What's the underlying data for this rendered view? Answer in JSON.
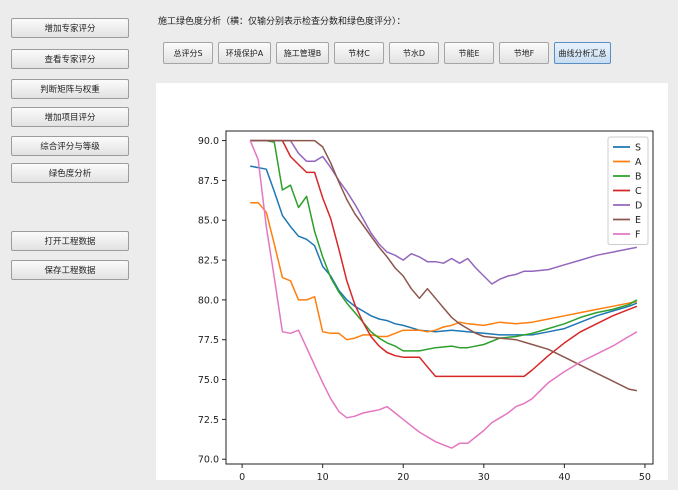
{
  "sidebar": {
    "buttons": [
      {
        "label": "增加专家评分"
      },
      {
        "label": "查看专家评分"
      },
      {
        "label": "判断矩阵与权重"
      },
      {
        "label": "增加项目评分"
      },
      {
        "label": "综合评分与等级"
      },
      {
        "label": "绿色度分析"
      },
      {
        "label": "打开工程数据"
      },
      {
        "label": "保存工程数据"
      }
    ]
  },
  "header": {
    "caption": "施工绿色度分析（横：仅输分别表示检查分数和绿色度评分）："
  },
  "tabs": [
    {
      "label": "总评分S"
    },
    {
      "label": "环境保护A"
    },
    {
      "label": "施工管理B"
    },
    {
      "label": "节材C"
    },
    {
      "label": "节水D"
    },
    {
      "label": "节能E"
    },
    {
      "label": "节地F"
    },
    {
      "label": "曲线分析汇总"
    }
  ],
  "active_tab": 7,
  "chart_data": {
    "type": "line",
    "xlim": [
      -2,
      51
    ],
    "ylim": [
      69.7,
      90.6
    ],
    "xticks": [
      0,
      10,
      20,
      30,
      40,
      50
    ],
    "yticks": [
      70.0,
      72.5,
      75.0,
      77.5,
      80.0,
      82.5,
      85.0,
      87.5,
      90.0
    ],
    "legend_position": "top-right",
    "grid": false,
    "series": [
      {
        "name": "S",
        "color": "#1f77b4",
        "points": [
          [
            1,
            88.4
          ],
          [
            2,
            88.3
          ],
          [
            3,
            88.2
          ],
          [
            4,
            86.8
          ],
          [
            5,
            85.3
          ],
          [
            6,
            84.6
          ],
          [
            7,
            84.0
          ],
          [
            8,
            83.8
          ],
          [
            9,
            83.4
          ],
          [
            10,
            82.1
          ],
          [
            11,
            81.5
          ],
          [
            12,
            80.6
          ],
          [
            13,
            80.0
          ],
          [
            14,
            79.6
          ],
          [
            15,
            79.3
          ],
          [
            16,
            79.0
          ],
          [
            17,
            78.8
          ],
          [
            18,
            78.7
          ],
          [
            19,
            78.5
          ],
          [
            20,
            78.4
          ],
          [
            22,
            78.1
          ],
          [
            24,
            78.0
          ],
          [
            26,
            78.1
          ],
          [
            28,
            78.0
          ],
          [
            30,
            77.9
          ],
          [
            32,
            77.8
          ],
          [
            34,
            77.8
          ],
          [
            36,
            77.8
          ],
          [
            38,
            78.0
          ],
          [
            40,
            78.2
          ],
          [
            42,
            78.6
          ],
          [
            44,
            79.0
          ],
          [
            46,
            79.3
          ],
          [
            48,
            79.6
          ],
          [
            49,
            79.8
          ]
        ]
      },
      {
        "name": "A",
        "color": "#ff7f0e",
        "points": [
          [
            1,
            86.1
          ],
          [
            2,
            86.1
          ],
          [
            3,
            85.5
          ],
          [
            4,
            83.5
          ],
          [
            5,
            81.4
          ],
          [
            6,
            81.2
          ],
          [
            7,
            80.0
          ],
          [
            8,
            80.0
          ],
          [
            9,
            80.2
          ],
          [
            10,
            78.0
          ],
          [
            11,
            77.9
          ],
          [
            12,
            77.9
          ],
          [
            13,
            77.5
          ],
          [
            14,
            77.6
          ],
          [
            15,
            77.8
          ],
          [
            16,
            77.8
          ],
          [
            17,
            77.7
          ],
          [
            18,
            77.7
          ],
          [
            19,
            77.9
          ],
          [
            20,
            78.1
          ],
          [
            22,
            78.1
          ],
          [
            23,
            78.0
          ],
          [
            24,
            78.1
          ],
          [
            25,
            78.3
          ],
          [
            26,
            78.4
          ],
          [
            27,
            78.6
          ],
          [
            28,
            78.5
          ],
          [
            30,
            78.4
          ],
          [
            32,
            78.6
          ],
          [
            34,
            78.5
          ],
          [
            36,
            78.6
          ],
          [
            38,
            78.8
          ],
          [
            40,
            79.0
          ],
          [
            42,
            79.2
          ],
          [
            44,
            79.4
          ],
          [
            46,
            79.6
          ],
          [
            48,
            79.8
          ],
          [
            49,
            79.9
          ]
        ]
      },
      {
        "name": "B",
        "color": "#2ca02c",
        "points": [
          [
            1,
            90.0
          ],
          [
            2,
            90.0
          ],
          [
            3,
            90.0
          ],
          [
            4,
            89.9
          ],
          [
            5,
            86.9
          ],
          [
            6,
            87.2
          ],
          [
            7,
            85.8
          ],
          [
            8,
            86.5
          ],
          [
            9,
            84.3
          ],
          [
            10,
            82.7
          ],
          [
            11,
            81.4
          ],
          [
            12,
            80.5
          ],
          [
            13,
            79.8
          ],
          [
            14,
            79.2
          ],
          [
            15,
            78.6
          ],
          [
            16,
            78.0
          ],
          [
            17,
            77.6
          ],
          [
            18,
            77.3
          ],
          [
            19,
            77.1
          ],
          [
            20,
            76.8
          ],
          [
            22,
            76.8
          ],
          [
            24,
            77.0
          ],
          [
            26,
            77.1
          ],
          [
            27,
            77.0
          ],
          [
            28,
            77.0
          ],
          [
            30,
            77.2
          ],
          [
            32,
            77.6
          ],
          [
            34,
            77.7
          ],
          [
            36,
            77.9
          ],
          [
            38,
            78.2
          ],
          [
            40,
            78.5
          ],
          [
            42,
            78.9
          ],
          [
            44,
            79.2
          ],
          [
            46,
            79.4
          ],
          [
            48,
            79.7
          ],
          [
            49,
            80.0
          ]
        ]
      },
      {
        "name": "C",
        "color": "#d62728",
        "points": [
          [
            1,
            90.0
          ],
          [
            2,
            90.0
          ],
          [
            3,
            90.0
          ],
          [
            4,
            90.0
          ],
          [
            5,
            90.0
          ],
          [
            6,
            89.0
          ],
          [
            7,
            88.5
          ],
          [
            8,
            88.0
          ],
          [
            9,
            88.0
          ],
          [
            10,
            86.4
          ],
          [
            11,
            85.1
          ],
          [
            12,
            83.2
          ],
          [
            13,
            81.2
          ],
          [
            14,
            79.7
          ],
          [
            15,
            78.6
          ],
          [
            16,
            77.7
          ],
          [
            17,
            77.1
          ],
          [
            18,
            76.7
          ],
          [
            19,
            76.5
          ],
          [
            20,
            76.4
          ],
          [
            22,
            76.4
          ],
          [
            23,
            75.8
          ],
          [
            24,
            75.2
          ],
          [
            26,
            75.2
          ],
          [
            28,
            75.2
          ],
          [
            30,
            75.2
          ],
          [
            32,
            75.2
          ],
          [
            34,
            75.2
          ],
          [
            35,
            75.2
          ],
          [
            36,
            75.6
          ],
          [
            38,
            76.5
          ],
          [
            40,
            77.3
          ],
          [
            42,
            78.0
          ],
          [
            44,
            78.5
          ],
          [
            46,
            79.0
          ],
          [
            48,
            79.4
          ],
          [
            49,
            79.6
          ]
        ]
      },
      {
        "name": "D",
        "color": "#9467bd",
        "points": [
          [
            1,
            90.0
          ],
          [
            2,
            90.0
          ],
          [
            3,
            90.0
          ],
          [
            4,
            90.0
          ],
          [
            5,
            90.0
          ],
          [
            6,
            90.0
          ],
          [
            7,
            89.2
          ],
          [
            8,
            88.7
          ],
          [
            9,
            88.7
          ],
          [
            10,
            89.0
          ],
          [
            11,
            88.3
          ],
          [
            12,
            87.5
          ],
          [
            13,
            86.8
          ],
          [
            14,
            86.0
          ],
          [
            15,
            85.1
          ],
          [
            16,
            84.2
          ],
          [
            17,
            83.5
          ],
          [
            18,
            83.0
          ],
          [
            19,
            82.8
          ],
          [
            20,
            82.5
          ],
          [
            21,
            82.9
          ],
          [
            22,
            82.7
          ],
          [
            23,
            82.4
          ],
          [
            24,
            82.4
          ],
          [
            25,
            82.3
          ],
          [
            26,
            82.6
          ],
          [
            27,
            82.3
          ],
          [
            28,
            82.6
          ],
          [
            29,
            82.0
          ],
          [
            30,
            81.5
          ],
          [
            31,
            81.0
          ],
          [
            32,
            81.3
          ],
          [
            33,
            81.5
          ],
          [
            34,
            81.6
          ],
          [
            35,
            81.8
          ],
          [
            36,
            81.8
          ],
          [
            38,
            81.9
          ],
          [
            40,
            82.2
          ],
          [
            42,
            82.5
          ],
          [
            44,
            82.8
          ],
          [
            46,
            83.0
          ],
          [
            48,
            83.2
          ],
          [
            49,
            83.3
          ]
        ]
      },
      {
        "name": "E",
        "color": "#8c564b",
        "points": [
          [
            1,
            90.0
          ],
          [
            2,
            90.0
          ],
          [
            3,
            90.0
          ],
          [
            4,
            90.0
          ],
          [
            5,
            90.0
          ],
          [
            6,
            90.0
          ],
          [
            7,
            90.0
          ],
          [
            8,
            90.0
          ],
          [
            9,
            90.0
          ],
          [
            10,
            89.6
          ],
          [
            11,
            88.6
          ],
          [
            12,
            87.4
          ],
          [
            13,
            86.3
          ],
          [
            14,
            85.4
          ],
          [
            15,
            84.7
          ],
          [
            16,
            84.0
          ],
          [
            17,
            83.3
          ],
          [
            18,
            82.7
          ],
          [
            19,
            82.0
          ],
          [
            20,
            81.5
          ],
          [
            21,
            80.7
          ],
          [
            22,
            80.1
          ],
          [
            23,
            80.7
          ],
          [
            24,
            80.1
          ],
          [
            25,
            79.5
          ],
          [
            26,
            78.9
          ],
          [
            27,
            78.5
          ],
          [
            28,
            78.2
          ],
          [
            29,
            77.9
          ],
          [
            30,
            77.7
          ],
          [
            32,
            77.6
          ],
          [
            34,
            77.5
          ],
          [
            36,
            77.2
          ],
          [
            38,
            76.9
          ],
          [
            40,
            76.4
          ],
          [
            42,
            75.9
          ],
          [
            44,
            75.4
          ],
          [
            46,
            74.9
          ],
          [
            48,
            74.4
          ],
          [
            49,
            74.3
          ]
        ]
      },
      {
        "name": "F",
        "color": "#e377c2",
        "points": [
          [
            1,
            90.0
          ],
          [
            2,
            88.8
          ],
          [
            3,
            84.6
          ],
          [
            4,
            81.4
          ],
          [
            5,
            78.0
          ],
          [
            6,
            77.9
          ],
          [
            7,
            78.1
          ],
          [
            8,
            77.0
          ],
          [
            9,
            75.9
          ],
          [
            10,
            74.8
          ],
          [
            11,
            73.8
          ],
          [
            12,
            73.0
          ],
          [
            13,
            72.6
          ],
          [
            14,
            72.7
          ],
          [
            15,
            72.9
          ],
          [
            16,
            73.0
          ],
          [
            17,
            73.1
          ],
          [
            18,
            73.3
          ],
          [
            19,
            72.9
          ],
          [
            20,
            72.5
          ],
          [
            21,
            72.1
          ],
          [
            22,
            71.7
          ],
          [
            23,
            71.4
          ],
          [
            24,
            71.1
          ],
          [
            25,
            70.9
          ],
          [
            26,
            70.7
          ],
          [
            27,
            71.0
          ],
          [
            28,
            71.0
          ],
          [
            29,
            71.4
          ],
          [
            30,
            71.8
          ],
          [
            31,
            72.3
          ],
          [
            32,
            72.6
          ],
          [
            33,
            72.9
          ],
          [
            34,
            73.3
          ],
          [
            35,
            73.5
          ],
          [
            36,
            73.8
          ],
          [
            37,
            74.3
          ],
          [
            38,
            74.8
          ],
          [
            40,
            75.5
          ],
          [
            42,
            76.1
          ],
          [
            44,
            76.6
          ],
          [
            46,
            77.1
          ],
          [
            48,
            77.7
          ],
          [
            49,
            78.0
          ]
        ]
      }
    ]
  }
}
